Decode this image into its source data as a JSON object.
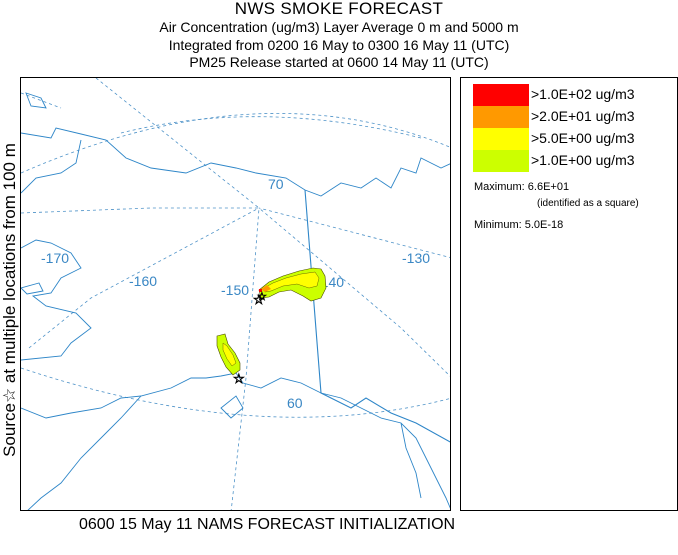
{
  "header": {
    "title": "NWS SMOKE FORECAST",
    "line2": "Air Concentration (ug/m3) Layer Average    0 m and  5000 m",
    "line3": "Integrated from 0200 16 May to 0300 16 May 11 (UTC)",
    "line4": "PM25 Release started at 0600 14 May 11 (UTC)"
  },
  "side_label": "Source☆ at multiple locations    from   100 m",
  "footer": "0600 15 May 11 NAMS FORECAST INITIALIZATION",
  "map": {
    "region": "Alaska",
    "grid_labels": {
      "lon_170": "-170",
      "lon_160": "-160",
      "lon_150": "-150",
      "lon_140": "-140",
      "lon_130": "-130",
      "lat_70": "70",
      "lat_60": "60"
    },
    "source_icon": "star-outline-icon"
  },
  "legend": {
    "items": [
      {
        "label": ">1.0E+02 ug/m3",
        "color": "#ff0000"
      },
      {
        "label": ">2.0E+01 ug/m3",
        "color": "#ff9900"
      },
      {
        "label": ">5.0E+00 ug/m3",
        "color": "#ffff00"
      },
      {
        "label": ">1.0E+00 ug/m3",
        "color": "#ccff00"
      }
    ],
    "maximum": "Maximum: 6.6E+01",
    "maximum_note": "(identified as a square)",
    "minimum": "Minimum: 5.0E-18"
  },
  "colors": {
    "coastline": "#2e86c8",
    "gridline": "#4f93c8"
  }
}
